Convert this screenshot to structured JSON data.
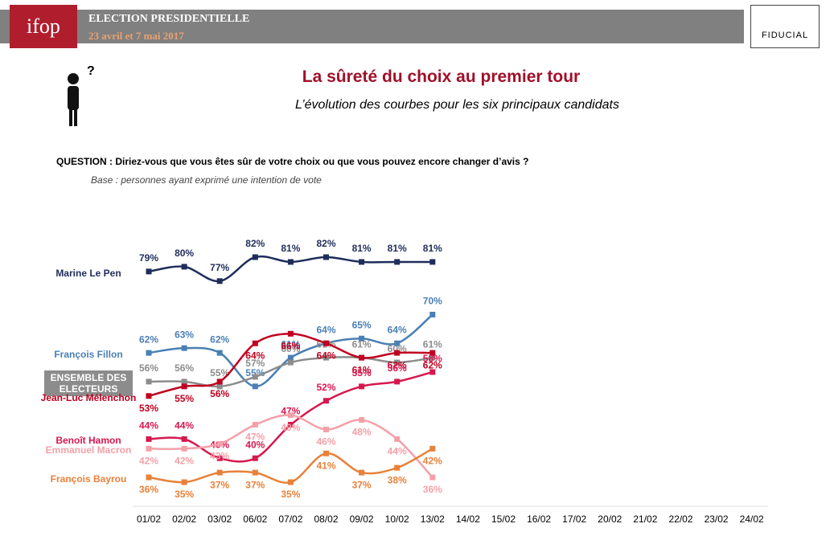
{
  "header": {
    "logo": "ifop",
    "title": "ELECTION PRESIDENTIELLE",
    "subtitle": "23 avril et 7 mai 2017",
    "partner": "FIDUCIAL"
  },
  "chart_data": {
    "type": "line",
    "title": "La sûreté du choix au premier tour",
    "subtitle": "L’évolution des courbes pour les six principaux candidats",
    "question": "QUESTION : Diriez-vous que vous êtes sûr de votre choix ou que vous pouvez encore changer d’avis ?",
    "base": "Base : personnes ayant exprimé une intention de vote",
    "categories": [
      "01/02",
      "02/02",
      "03/02",
      "06/02",
      "07/02",
      "08/02",
      "09/02",
      "10/02",
      "13/02",
      "14/02",
      "15/02",
      "16/02",
      "17/02",
      "20/02",
      "21/02",
      "22/02",
      "23/02",
      "24/02"
    ],
    "series": [
      {
        "name": "Marine Le Pen",
        "color": "#1f2d5a",
        "values": [
          79,
          80,
          77,
          82,
          81,
          82,
          81,
          81,
          81,
          null,
          null,
          null,
          null,
          null,
          null,
          null,
          null,
          null
        ],
        "value_labels": [
          "79%",
          "80%",
          "77%",
          "82%",
          "81%",
          "82%",
          "81%",
          "81%",
          "81%",
          null,
          null,
          null,
          null,
          null,
          null,
          null,
          null,
          null
        ]
      },
      {
        "name": "François Fillon",
        "color": "#4a7fb5",
        "values": [
          62,
          63,
          62,
          55,
          61,
          64,
          65,
          64,
          70,
          null,
          null,
          null,
          null,
          null,
          null,
          null,
          null,
          null
        ],
        "value_labels": [
          "62%",
          "63%",
          "62%",
          "55%",
          "61%",
          "64%",
          "65%",
          "64%",
          "70%",
          null,
          null,
          null,
          null,
          null,
          null,
          null,
          null,
          null
        ]
      },
      {
        "name": "ENSEMBLE DES ELECTEURS",
        "color": "#8c8c8c",
        "values": [
          56,
          56,
          55,
          57,
          60,
          61,
          61,
          60,
          61,
          null,
          null,
          null,
          null,
          null,
          null,
          null,
          null,
          null
        ],
        "value_labels": [
          "56%",
          "56%",
          "55%",
          "57%",
          "60%",
          "61%",
          "61%",
          "60%",
          "61%",
          null,
          null,
          null,
          null,
          null,
          null,
          null,
          null,
          null
        ]
      },
      {
        "name": "Jean-Luc Mélenchon",
        "color": "#c00020",
        "values": [
          53,
          55,
          56,
          64,
          66,
          64,
          61,
          62,
          62,
          null,
          null,
          null,
          null,
          null,
          null,
          null,
          null,
          null
        ],
        "value_labels": [
          "53%",
          "55%",
          "56%",
          "64%",
          "66%",
          "64%",
          "61%",
          "62%",
          "62%",
          null,
          null,
          null,
          null,
          null,
          null,
          null,
          null,
          null
        ]
      },
      {
        "name": "Benoît Hamon",
        "color": "#d6184f",
        "values": [
          44,
          44,
          40,
          40,
          47,
          52,
          55,
          56,
          58,
          null,
          null,
          null,
          null,
          null,
          null,
          null,
          null,
          null
        ],
        "value_labels": [
          "44%",
          "44%",
          "40%",
          "40%",
          "47%",
          "52%",
          "55%",
          "56%",
          "58%",
          null,
          null,
          null,
          null,
          null,
          null,
          null,
          null,
          null
        ]
      },
      {
        "name": "Emmanuel Macron",
        "color": "#f4a0a8",
        "values": [
          42,
          42,
          43,
          47,
          49,
          46,
          48,
          44,
          36,
          null,
          null,
          null,
          null,
          null,
          null,
          null,
          null,
          null
        ],
        "value_labels": [
          "42%",
          "42%",
          "43%",
          "47%",
          "49%",
          "46%",
          "48%",
          "44%",
          "36%",
          null,
          null,
          null,
          null,
          null,
          null,
          null,
          null,
          null
        ]
      },
      {
        "name": "François Bayrou",
        "color": "#e8813a",
        "values": [
          36,
          35,
          37,
          37,
          35,
          41,
          37,
          38,
          42,
          null,
          null,
          null,
          null,
          null,
          null,
          null,
          null,
          null
        ],
        "value_labels": [
          "36%",
          "35%",
          "37%",
          "37%",
          "35%",
          "41%",
          "37%",
          "38%",
          "42%",
          null,
          null,
          null,
          null,
          null,
          null,
          null,
          null,
          null
        ]
      }
    ]
  }
}
